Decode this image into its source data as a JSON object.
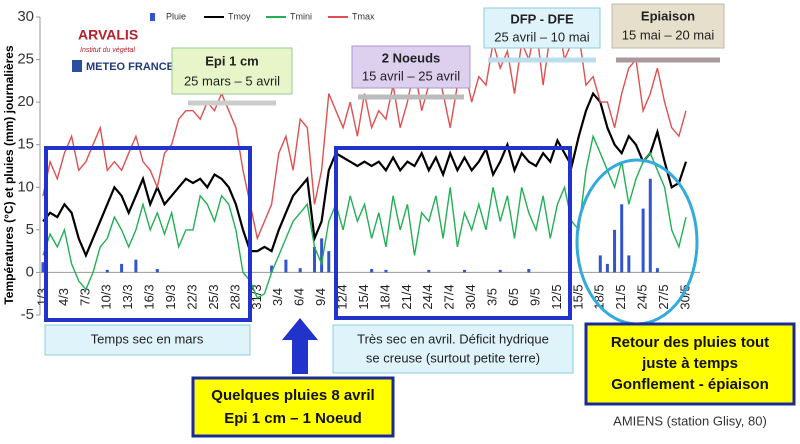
{
  "chart_data": {
    "type": "line",
    "y_axis_label": "Températures (°C) et pluies (mm) journalières",
    "ylim": [
      -5,
      30
    ],
    "yticks": [
      -5,
      0,
      5,
      10,
      15,
      20,
      25,
      30
    ],
    "grid": false,
    "categories": [
      "1/3",
      null,
      null,
      "4/3",
      null,
      null,
      "7/3",
      null,
      null,
      "10/3",
      null,
      null,
      "13/3",
      null,
      null,
      "16/3",
      null,
      null,
      "19/3",
      null,
      null,
      "22/3",
      null,
      null,
      "25/3",
      null,
      null,
      "28/3",
      null,
      null,
      "31/3",
      null,
      null,
      "3/4",
      null,
      null,
      "6/4",
      null,
      null,
      "9/4",
      null,
      null,
      "12/4",
      null,
      null,
      "15/4",
      null,
      null,
      "18/4",
      null,
      null,
      "21/4",
      null,
      null,
      "24/4",
      null,
      null,
      "27/4",
      null,
      null,
      "30/4",
      null,
      null,
      "3/5",
      null,
      null,
      "6/5",
      null,
      null,
      "9/5",
      null,
      null,
      "12/5",
      null,
      null,
      "15/5",
      null,
      null,
      "18/5",
      null,
      null,
      "21/5",
      null,
      null,
      "24/5",
      null,
      null,
      "27/5",
      null,
      null,
      "30/5"
    ],
    "series": [
      {
        "name": "Pluie",
        "type": "bar",
        "color": "#3355cc",
        "values": [
          1.2,
          0,
          0,
          0,
          0,
          0,
          0,
          0,
          0,
          0.3,
          0,
          1,
          0,
          1.5,
          0,
          0,
          0.4,
          0,
          0,
          0,
          0,
          0,
          0,
          0,
          0,
          0,
          0,
          0,
          0,
          0,
          0,
          0,
          0.8,
          0,
          1.5,
          0,
          0.5,
          0,
          3,
          4,
          2.5,
          0,
          0,
          0,
          0,
          0,
          0.4,
          0,
          0.3,
          0,
          0,
          0,
          0,
          0,
          0.3,
          0,
          0,
          0,
          0,
          0.3,
          0,
          0,
          0,
          0,
          0.3,
          0,
          0,
          0,
          0.4,
          0,
          0,
          0,
          0,
          0,
          0,
          0,
          0,
          0,
          2,
          1,
          5,
          8,
          2,
          0,
          7.5,
          11,
          0.5,
          0,
          0,
          0,
          0
        ]
      },
      {
        "name": "Tmoy",
        "type": "line",
        "color": "#000000",
        "values": [
          6,
          7,
          6.5,
          8,
          7,
          4,
          2,
          4,
          6,
          8,
          10,
          9,
          7,
          9,
          11,
          8,
          10,
          8,
          9,
          10,
          11,
          10.5,
          11,
          10,
          11.5,
          11,
          10,
          8,
          5,
          2.5,
          2.5,
          3,
          2.5,
          5,
          7,
          9,
          10,
          11,
          4,
          6,
          12,
          14,
          13.5,
          13,
          12.5,
          13,
          12.5,
          13,
          12,
          13.5,
          12,
          13,
          12.5,
          14,
          12,
          13.5,
          11.5,
          14,
          12,
          13.5,
          12,
          13,
          14.5,
          11.5,
          13,
          15,
          12,
          14,
          13,
          12.5,
          14,
          13,
          15.5,
          14,
          12.5,
          16,
          19,
          21,
          20,
          17,
          15,
          14,
          16,
          15,
          13,
          14,
          16.5,
          13,
          10,
          10.5,
          13
        ]
      },
      {
        "name": "Tmini",
        "type": "line",
        "color": "#22b055",
        "values": [
          2,
          4.5,
          3,
          5,
          1,
          -1,
          -2,
          0,
          3,
          4,
          6.5,
          5,
          3,
          5,
          8,
          5,
          7,
          4.5,
          7,
          3,
          5,
          5,
          9,
          8,
          6,
          9,
          8,
          5,
          0,
          -1,
          -3,
          -2.5,
          0,
          2,
          4,
          6,
          7,
          8,
          3,
          1,
          6,
          8,
          5,
          9,
          6,
          8,
          4,
          7,
          3,
          9,
          5,
          8,
          2,
          7,
          6,
          9,
          4,
          10,
          3,
          7,
          5,
          8,
          5,
          10,
          6,
          9,
          4,
          10,
          7,
          5,
          9,
          4,
          8,
          10,
          6,
          5,
          12,
          16,
          14,
          12,
          10,
          13,
          8,
          11,
          13,
          14,
          12,
          10,
          5,
          3,
          6.5
        ]
      },
      {
        "name": "Tmax",
        "type": "line",
        "color": "#e05050",
        "values": [
          9,
          13,
          11,
          14,
          16,
          12,
          13,
          15,
          17,
          12,
          13,
          12,
          14,
          16,
          13,
          12,
          10,
          14,
          15,
          18,
          19,
          19,
          18,
          20,
          19,
          21,
          19,
          17,
          12,
          8,
          4,
          6,
          8,
          14,
          16,
          12,
          18,
          17,
          8,
          12,
          21,
          19,
          17,
          20,
          16,
          21,
          17,
          19,
          18,
          22,
          17,
          20,
          24,
          19,
          22,
          25,
          21,
          17,
          22,
          24,
          20,
          23,
          22,
          27,
          24,
          26,
          21,
          27,
          25,
          29,
          22,
          28,
          30,
          25,
          27,
          28,
          22,
          23,
          20,
          20,
          17,
          21,
          24,
          25,
          19,
          21,
          24,
          20,
          17,
          16,
          19
        ]
      }
    ]
  },
  "logos": [
    "ARVALIS",
    "Institut du végétal",
    "METEO FRANCE"
  ],
  "stages": [
    {
      "title": "Epi 1 cm",
      "period": "25 mars – 5 avril"
    },
    {
      "title": "2 Noeuds",
      "period": "15 avril – 25 avril"
    },
    {
      "title": "DFP - DFE",
      "period": "25 avril – 10 mai"
    },
    {
      "title": "Epiaison",
      "period": "15 mai – 20 mai"
    }
  ],
  "comments": [
    {
      "lines": [
        "Temps sec en mars"
      ]
    },
    {
      "lines": [
        "Très sec en avril. Déficit hydrique",
        "se creuse (surtout petite terre)"
      ]
    },
    {
      "lines": [
        "Quelques pluies 8 avril",
        "Epi 1 cm – 1 Noeud"
      ]
    },
    {
      "lines": [
        "Retour des pluies tout",
        "juste à temps",
        "Gonflement - épiaison"
      ]
    }
  ],
  "station": "AMIENS (station Glisy, 80)"
}
